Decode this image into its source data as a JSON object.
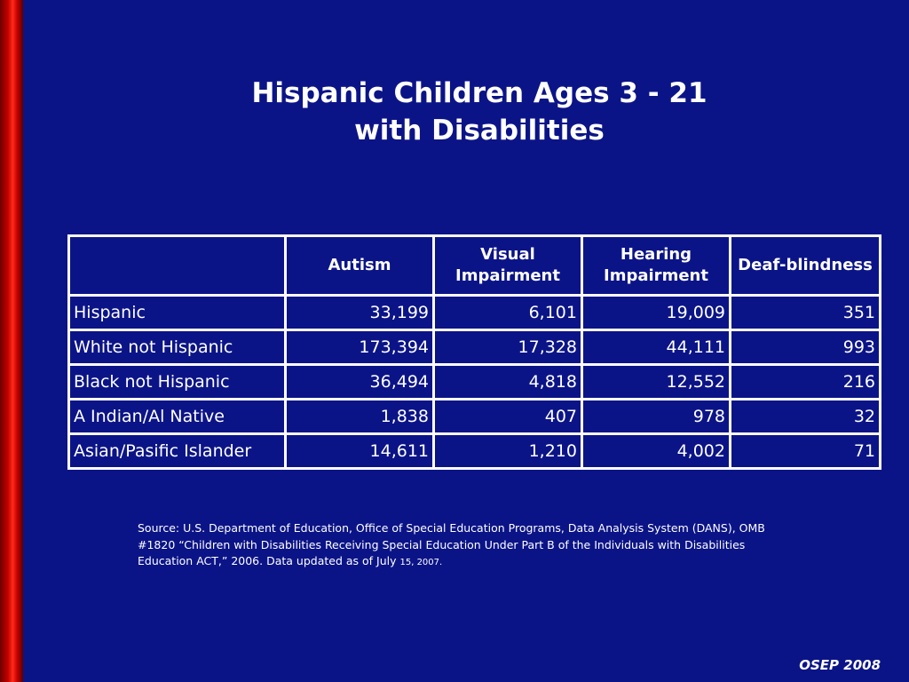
{
  "title": {
    "line1": "Hispanic Children Ages 3 - 21",
    "line2": "with Disabilities"
  },
  "table": {
    "columns": [
      "",
      "Autism",
      "Visual Impairment",
      "Hearing Impairment",
      "Deaf-blindness"
    ],
    "rows": [
      {
        "label": "Hispanic",
        "values": [
          "33,199",
          "6,101",
          "19,009",
          "351"
        ]
      },
      {
        "label": "White not Hispanic",
        "values": [
          "173,394",
          "17,328",
          "44,111",
          "993"
        ]
      },
      {
        "label": "Black not Hispanic",
        "values": [
          "36,494",
          "4,818",
          "12,552",
          "216"
        ]
      },
      {
        "label": "A Indian/Al Native",
        "values": [
          "1,838",
          "407",
          "978",
          "32"
        ]
      },
      {
        "label": "Asian/Pasific Islander",
        "values": [
          "14,611",
          "1,210",
          "4,002",
          "71"
        ]
      }
    ]
  },
  "source": {
    "text": "Source: U.S. Department of Education, Office of Special Education Programs, Data Analysis System (DANS), OMB #1820 “Children with Disabilities Receiving Special Education Under Part B of the Individuals with Disabilities Education ACT,” 2006. Data updated as of July",
    "date_small": "15, 2007."
  },
  "footer": "OSEP 2008",
  "colors": {
    "background": "#0b1487",
    "accent_bar": "#d40000",
    "text": "#ffffff"
  }
}
